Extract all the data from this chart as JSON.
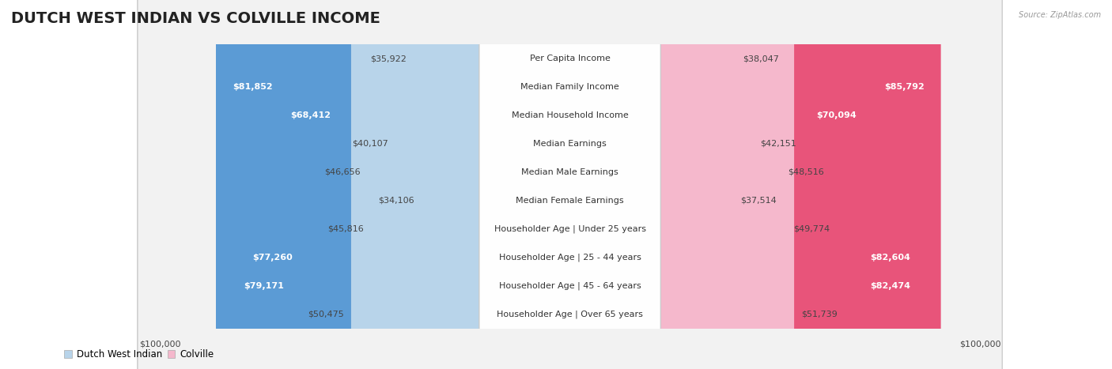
{
  "title": "DUTCH WEST INDIAN VS COLVILLE INCOME",
  "source": "Source: ZipAtlas.com",
  "categories": [
    "Per Capita Income",
    "Median Family Income",
    "Median Household Income",
    "Median Earnings",
    "Median Male Earnings",
    "Median Female Earnings",
    "Householder Age | Under 25 years",
    "Householder Age | 25 - 44 years",
    "Householder Age | 45 - 64 years",
    "Householder Age | Over 65 years"
  ],
  "dutch_values": [
    35922,
    81852,
    68412,
    40107,
    46656,
    34106,
    45816,
    77260,
    79171,
    50475
  ],
  "colville_values": [
    38047,
    85792,
    70094,
    42151,
    48516,
    37514,
    49774,
    82604,
    82474,
    51739
  ],
  "dutch_labels": [
    "$35,922",
    "$81,852",
    "$68,412",
    "$40,107",
    "$46,656",
    "$34,106",
    "$45,816",
    "$77,260",
    "$79,171",
    "$50,475"
  ],
  "colville_labels": [
    "$38,047",
    "$85,792",
    "$70,094",
    "$42,151",
    "$48,516",
    "$37,514",
    "$49,774",
    "$82,604",
    "$82,474",
    "$51,739"
  ],
  "dutch_color_light": "#b8d4ea",
  "dutch_color_dark": "#5b9bd5",
  "colville_color_light": "#f5b8cc",
  "colville_color_dark": "#e8547a",
  "dutch_threshold": 60000,
  "colville_threshold": 60000,
  "max_value": 100000,
  "bg_color": "#ffffff",
  "row_bg_even": "#f0f0f0",
  "row_bg_odd": "#fafafa",
  "title_fontsize": 14,
  "cat_fontsize": 8,
  "value_fontsize": 8,
  "legend_dutch": "Dutch West Indian",
  "legend_colville": "Colville",
  "x_axis_label_left": "$100,000",
  "x_axis_label_right": "$100,000"
}
